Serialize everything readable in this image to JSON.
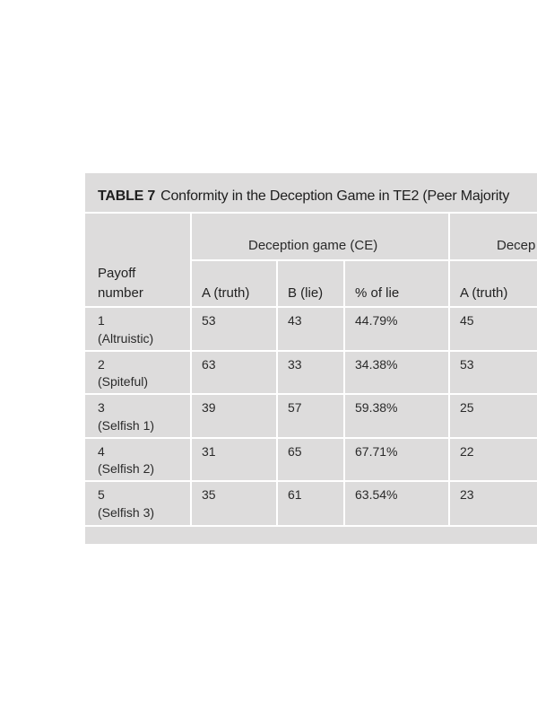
{
  "table": {
    "label": "TABLE 7",
    "title": "Conformity in the Deception Game in TE2 (Peer Majority",
    "group_headers": [
      "Deception game (CE)",
      "Decep"
    ],
    "row_header": [
      "Payoff",
      "number"
    ],
    "column_headers": [
      "A (truth)",
      "B (lie)",
      "% of lie",
      "A (truth)"
    ],
    "rows": [
      {
        "num": "1",
        "name": "(Altruistic)",
        "a": "53",
        "b": "43",
        "pct": "44.79%",
        "a2": "45"
      },
      {
        "num": "2",
        "name": "(Spiteful)",
        "a": "63",
        "b": "33",
        "pct": "34.38%",
        "a2": "53"
      },
      {
        "num": "3",
        "name": "(Selfish 1)",
        "a": "39",
        "b": "57",
        "pct": "59.38%",
        "a2": "25"
      },
      {
        "num": "4",
        "name": "(Selfish 2)",
        "a": "31",
        "b": "65",
        "pct": "67.71%",
        "a2": "22"
      },
      {
        "num": "5",
        "name": "(Selfish 3)",
        "a": "35",
        "b": "61",
        "pct": "63.54%",
        "a2": "23"
      }
    ]
  }
}
